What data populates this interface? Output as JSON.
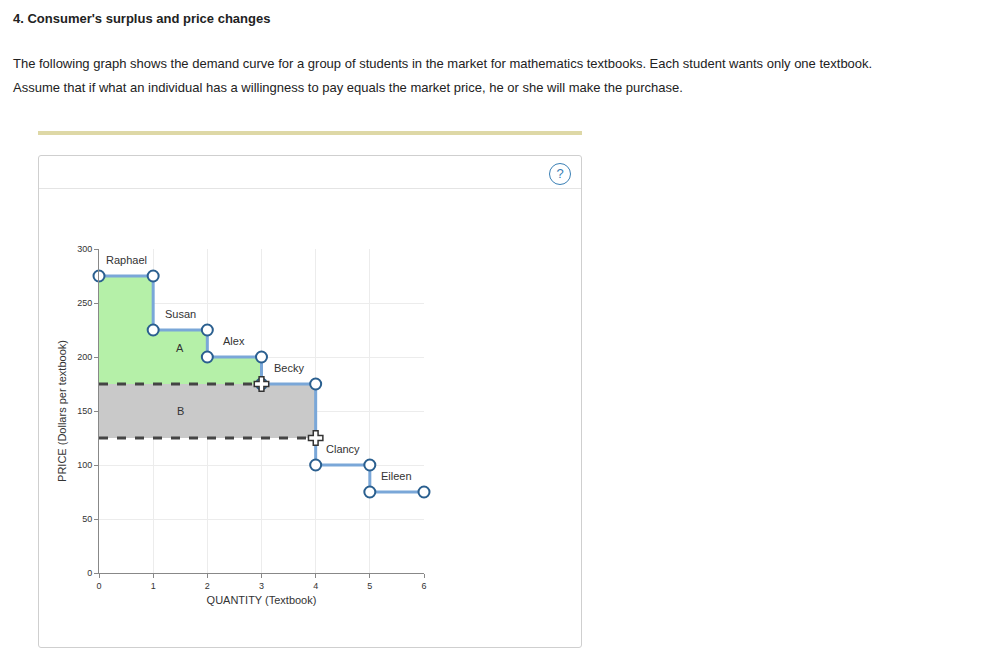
{
  "heading": "4. Consumer's surplus and price changes",
  "paragraphs": [
    "The following graph shows the demand curve for a group of students in the market for mathematics textbooks. Each student wants only one textbook.",
    "Assume that if what an individual has a willingness to pay equals the market price, he or she will make the purchase."
  ],
  "help": "?",
  "chart_data": {
    "type": "step",
    "xlabel": "QUANTITY (Textbook)",
    "ylabel": "PRICE (Dollars per textbook)",
    "xlim": [
      0,
      6
    ],
    "xticks": [
      0,
      1,
      2,
      3,
      4,
      5,
      6
    ],
    "ylim": [
      0,
      300
    ],
    "yticks": [
      0,
      50,
      100,
      150,
      200,
      250,
      300
    ],
    "grid": true,
    "color": "#7aa7d8",
    "marker": "circle",
    "steps": [
      {
        "name": "Raphael",
        "x": [
          0,
          1
        ],
        "value": 275
      },
      {
        "name": "Susan",
        "x": [
          1,
          2
        ],
        "value": 225
      },
      {
        "name": "Alex",
        "x": [
          2,
          3
        ],
        "value": 200
      },
      {
        "name": "Becky",
        "x": [
          3,
          4
        ],
        "value": 175
      },
      {
        "name": "Clancy",
        "x": [
          4,
          5
        ],
        "value": 100
      },
      {
        "name": "Eileen",
        "x": [
          5,
          6
        ],
        "value": 75
      }
    ],
    "areas": [
      {
        "label": "A",
        "color": "#b5f0a8",
        "x": [
          0,
          3
        ],
        "floor": 175,
        "label_at": [
          1.5,
          208
        ]
      },
      {
        "label": "B",
        "color": "#c9c9c9",
        "x": [
          0,
          4
        ],
        "floor": 125,
        "ceiling": 175,
        "label_at": [
          1.5,
          150
        ]
      }
    ],
    "price_lines": [
      {
        "value": 175,
        "x": [
          0,
          3
        ],
        "line_style": "dash",
        "marker": "cross"
      },
      {
        "value": 125,
        "x": [
          0,
          4
        ],
        "line_style": "dash",
        "marker": "cross"
      }
    ]
  }
}
